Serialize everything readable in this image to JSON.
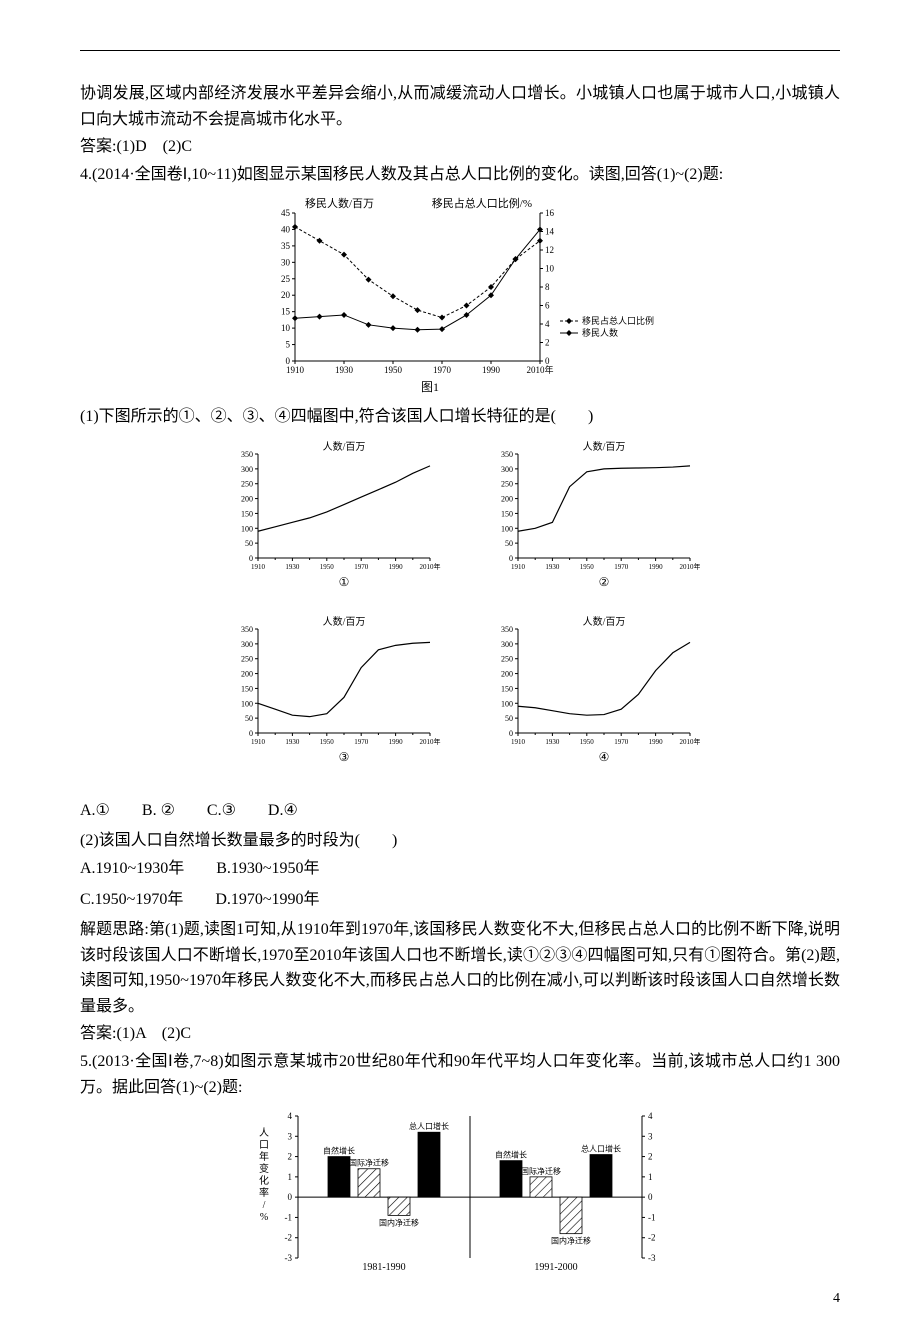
{
  "colors": {
    "text": "#000000",
    "axis": "#000000",
    "line_solid": "#000000",
    "line_dash": "#000000",
    "bar_fill": "#ffffff",
    "bar_stroke": "#000000",
    "hatch": "#000000",
    "bg": "#ffffff"
  },
  "intro_para": "协调发展,区域内部经济发展水平差异会缩小,从而减缓流动人口增长。小城镇人口也属于城市人口,小城镇人口向大城市流动不会提高城市化水平。",
  "answer3": "答案:(1)D　(2)C",
  "q4": {
    "stem": "4.(2014·全国卷Ⅰ,10~11)如图显示某国移民人数及其占总人口比例的变化。读图,回答(1)~(2)题:",
    "sub1": "(1)下图所示的①、②、③、④四幅图中,符合该国人口增长特征的是(　　)",
    "options1": "A.①　　B. ②　　C.③　　D.④",
    "sub2": "(2)该国人口自然增长数量最多的时段为(　　)",
    "options2a": "A.1910~1930年　　B.1930~1950年",
    "options2b": "C.1950~1970年　　D.1970~1990年",
    "solution": "解题思路:第(1)题,读图1可知,从1910年到1970年,该国移民人数变化不大,但移民占总人口的比例不断下降,说明该时段该国人口不断增长,1970至2010年该国人口也不断增长,读①②③④四幅图可知,只有①图符合。第(2)题,读图可知,1950~1970年移民人数变化不大,而移民占总人口的比例在减小,可以判断该时段该国人口自然增长数量最多。",
    "answer": "答案:(1)A　(2)C"
  },
  "q5": {
    "stem": "5.(2013·全国Ⅰ卷,7~8)如图示意某城市20世纪80年代和90年代平均人口年变化率。当前,该城市总人口约1 300万。据此回答(1)~(2)题:"
  },
  "fig1": {
    "title_left": "移民人数/百万",
    "title_right": "移民占总人口比例/%",
    "x_ticks": [
      "1910",
      "1930",
      "1950",
      "1970",
      "1990",
      "2010年"
    ],
    "y_left": {
      "min": 0,
      "max": 45,
      "step": 5,
      "ticks": [
        0,
        5,
        10,
        15,
        20,
        25,
        30,
        35,
        40,
        45
      ]
    },
    "y_right": {
      "min": 0,
      "max": 16,
      "step": 2,
      "ticks": [
        0,
        2,
        4,
        6,
        8,
        10,
        12,
        14,
        16
      ]
    },
    "series": {
      "number": {
        "label": "移民人数",
        "marker": "diamond",
        "dash": false,
        "points": [
          [
            1910,
            13
          ],
          [
            1920,
            13.5
          ],
          [
            1930,
            14
          ],
          [
            1940,
            11
          ],
          [
            1950,
            10
          ],
          [
            1960,
            9.5
          ],
          [
            1970,
            9.7
          ],
          [
            1980,
            14
          ],
          [
            1990,
            20
          ],
          [
            2000,
            31
          ],
          [
            2010,
            40
          ]
        ]
      },
      "ratio": {
        "label": "移民占总人口比例",
        "marker": "diamond",
        "dash": true,
        "points": [
          [
            1910,
            14.5
          ],
          [
            1920,
            13
          ],
          [
            1930,
            11.5
          ],
          [
            1940,
            8.8
          ],
          [
            1950,
            7
          ],
          [
            1960,
            5.5
          ],
          [
            1970,
            4.7
          ],
          [
            1980,
            6
          ],
          [
            1990,
            8
          ],
          [
            2000,
            11
          ],
          [
            2010,
            13
          ]
        ]
      }
    },
    "caption": "图1"
  },
  "small_charts": {
    "y_label": "人数/百万",
    "y": {
      "min": 0,
      "max": 350,
      "step": 50,
      "ticks": [
        0,
        50,
        100,
        150,
        200,
        250,
        300,
        350
      ]
    },
    "x_ticks": [
      "1910",
      "1930",
      "1950",
      "1970",
      "1990",
      "2010年"
    ],
    "panels": [
      {
        "id": "①",
        "points": [
          [
            1910,
            90
          ],
          [
            1920,
            105
          ],
          [
            1930,
            120
          ],
          [
            1940,
            135
          ],
          [
            1950,
            155
          ],
          [
            1960,
            180
          ],
          [
            1970,
            205
          ],
          [
            1980,
            230
          ],
          [
            1990,
            255
          ],
          [
            2000,
            285
          ],
          [
            2010,
            310
          ]
        ]
      },
      {
        "id": "②",
        "points": [
          [
            1910,
            90
          ],
          [
            1920,
            100
          ],
          [
            1930,
            120
          ],
          [
            1940,
            240
          ],
          [
            1950,
            290
          ],
          [
            1960,
            300
          ],
          [
            1970,
            302
          ],
          [
            1980,
            303
          ],
          [
            1990,
            304
          ],
          [
            2000,
            306
          ],
          [
            2010,
            310
          ]
        ]
      },
      {
        "id": "③",
        "points": [
          [
            1910,
            100
          ],
          [
            1920,
            80
          ],
          [
            1930,
            60
          ],
          [
            1940,
            55
          ],
          [
            1950,
            65
          ],
          [
            1960,
            120
          ],
          [
            1970,
            220
          ],
          [
            1980,
            280
          ],
          [
            1990,
            295
          ],
          [
            2000,
            302
          ],
          [
            2010,
            305
          ]
        ]
      },
      {
        "id": "④",
        "points": [
          [
            1910,
            90
          ],
          [
            1920,
            85
          ],
          [
            1930,
            75
          ],
          [
            1940,
            65
          ],
          [
            1950,
            60
          ],
          [
            1960,
            62
          ],
          [
            1970,
            80
          ],
          [
            1980,
            130
          ],
          [
            1990,
            210
          ],
          [
            2000,
            270
          ],
          [
            2010,
            305
          ]
        ]
      }
    ]
  },
  "fig_q5": {
    "y_label": "人口年变化率/%",
    "y_left": {
      "min": -3,
      "max": 4,
      "step": 1,
      "ticks": [
        -3,
        -2,
        -1,
        0,
        1,
        2,
        3,
        4
      ]
    },
    "y_right": {
      "min": -3,
      "max": 4,
      "step": 1,
      "ticks": [
        -3,
        -2,
        -1,
        0,
        1,
        2,
        3,
        4
      ]
    },
    "groups": [
      {
        "period": "1981-1990",
        "bars": [
          {
            "label": "自然增长",
            "value": 2.0,
            "pattern": "solid"
          },
          {
            "label": "国际净迁移",
            "value": 1.4,
            "pattern": "hatch"
          },
          {
            "label": "国内净迁移",
            "value": -0.9,
            "pattern": "hatch"
          },
          {
            "label": "总人口增长",
            "value": 3.2,
            "pattern": "solid"
          }
        ]
      },
      {
        "period": "1991-2000",
        "bars": [
          {
            "label": "自然增长",
            "value": 1.8,
            "pattern": "solid"
          },
          {
            "label": "国际净迁移",
            "value": 1.0,
            "pattern": "hatch"
          },
          {
            "label": "国内净迁移",
            "value": -1.8,
            "pattern": "hatch"
          },
          {
            "label": "总人口增长",
            "value": 2.1,
            "pattern": "solid"
          }
        ]
      }
    ]
  },
  "page_number": "4"
}
